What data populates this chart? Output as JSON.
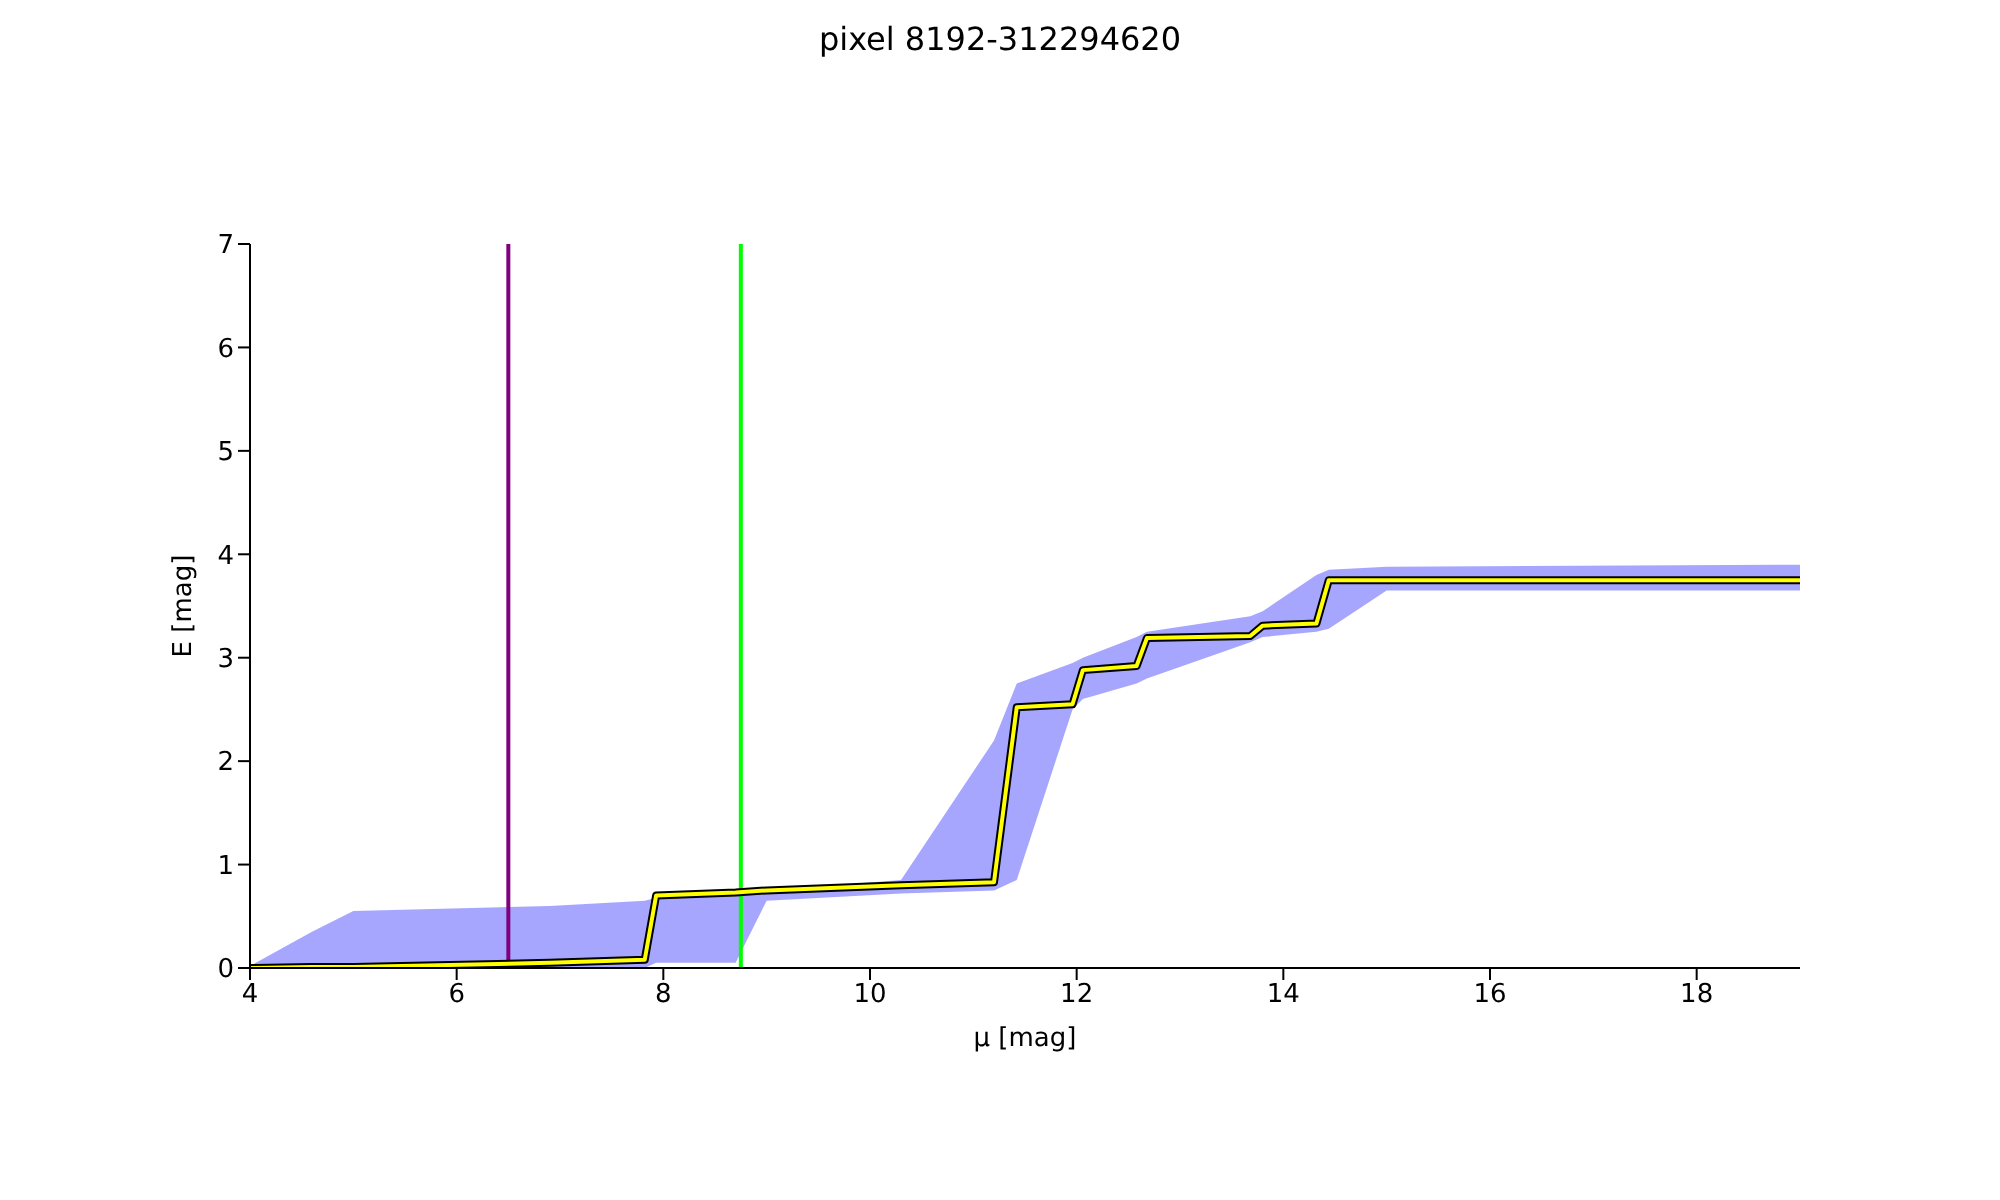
{
  "chart_data": {
    "type": "line",
    "title": "pixel 8192-312294620",
    "xlabel": "μ [mag]",
    "ylabel": "E [mag]",
    "xlim": [
      4,
      19
    ],
    "ylim": [
      0,
      7
    ],
    "xticks": [
      4,
      6,
      8,
      10,
      12,
      14,
      16,
      18
    ],
    "yticks": [
      0,
      1,
      2,
      3,
      4,
      5,
      6,
      7
    ],
    "legend": false,
    "marker": "none",
    "line_style": "solid",
    "series": [
      {
        "color": "#ffff00",
        "x": [
          4,
          4.6,
          5,
          6.9,
          7.82,
          7.93,
          8.7,
          9,
          10.3,
          11.2,
          11.42,
          11.96,
          12.06,
          12.58,
          12.68,
          13.68,
          13.8,
          14.32,
          14.44,
          15,
          19
        ],
        "values": [
          0,
          0.01,
          0.01,
          0.05,
          0.08,
          0.7,
          0.73,
          0.75,
          0.8,
          0.83,
          2.52,
          2.55,
          2.88,
          2.92,
          3.19,
          3.21,
          3.31,
          3.33,
          3.75,
          3.75,
          3.75
        ],
        "lower": [
          0,
          0,
          0,
          0,
          0,
          0.05,
          0.05,
          0.65,
          0.72,
          0.75,
          0.85,
          2.5,
          2.6,
          2.75,
          2.8,
          3.15,
          3.2,
          3.25,
          3.28,
          3.65,
          3.65
        ],
        "upper": [
          0.02,
          0.35,
          0.55,
          0.6,
          0.65,
          0.68,
          0.72,
          0.75,
          0.85,
          2.2,
          2.75,
          2.95,
          3,
          3.2,
          3.25,
          3.4,
          3.45,
          3.8,
          3.85,
          3.88,
          3.9
        ]
      }
    ],
    "ref_lines": [
      {
        "axis": "x",
        "value": 6.5,
        "color": "#800080"
      },
      {
        "axis": "x",
        "value": 8.75,
        "color": "#00ff00"
      }
    ]
  }
}
